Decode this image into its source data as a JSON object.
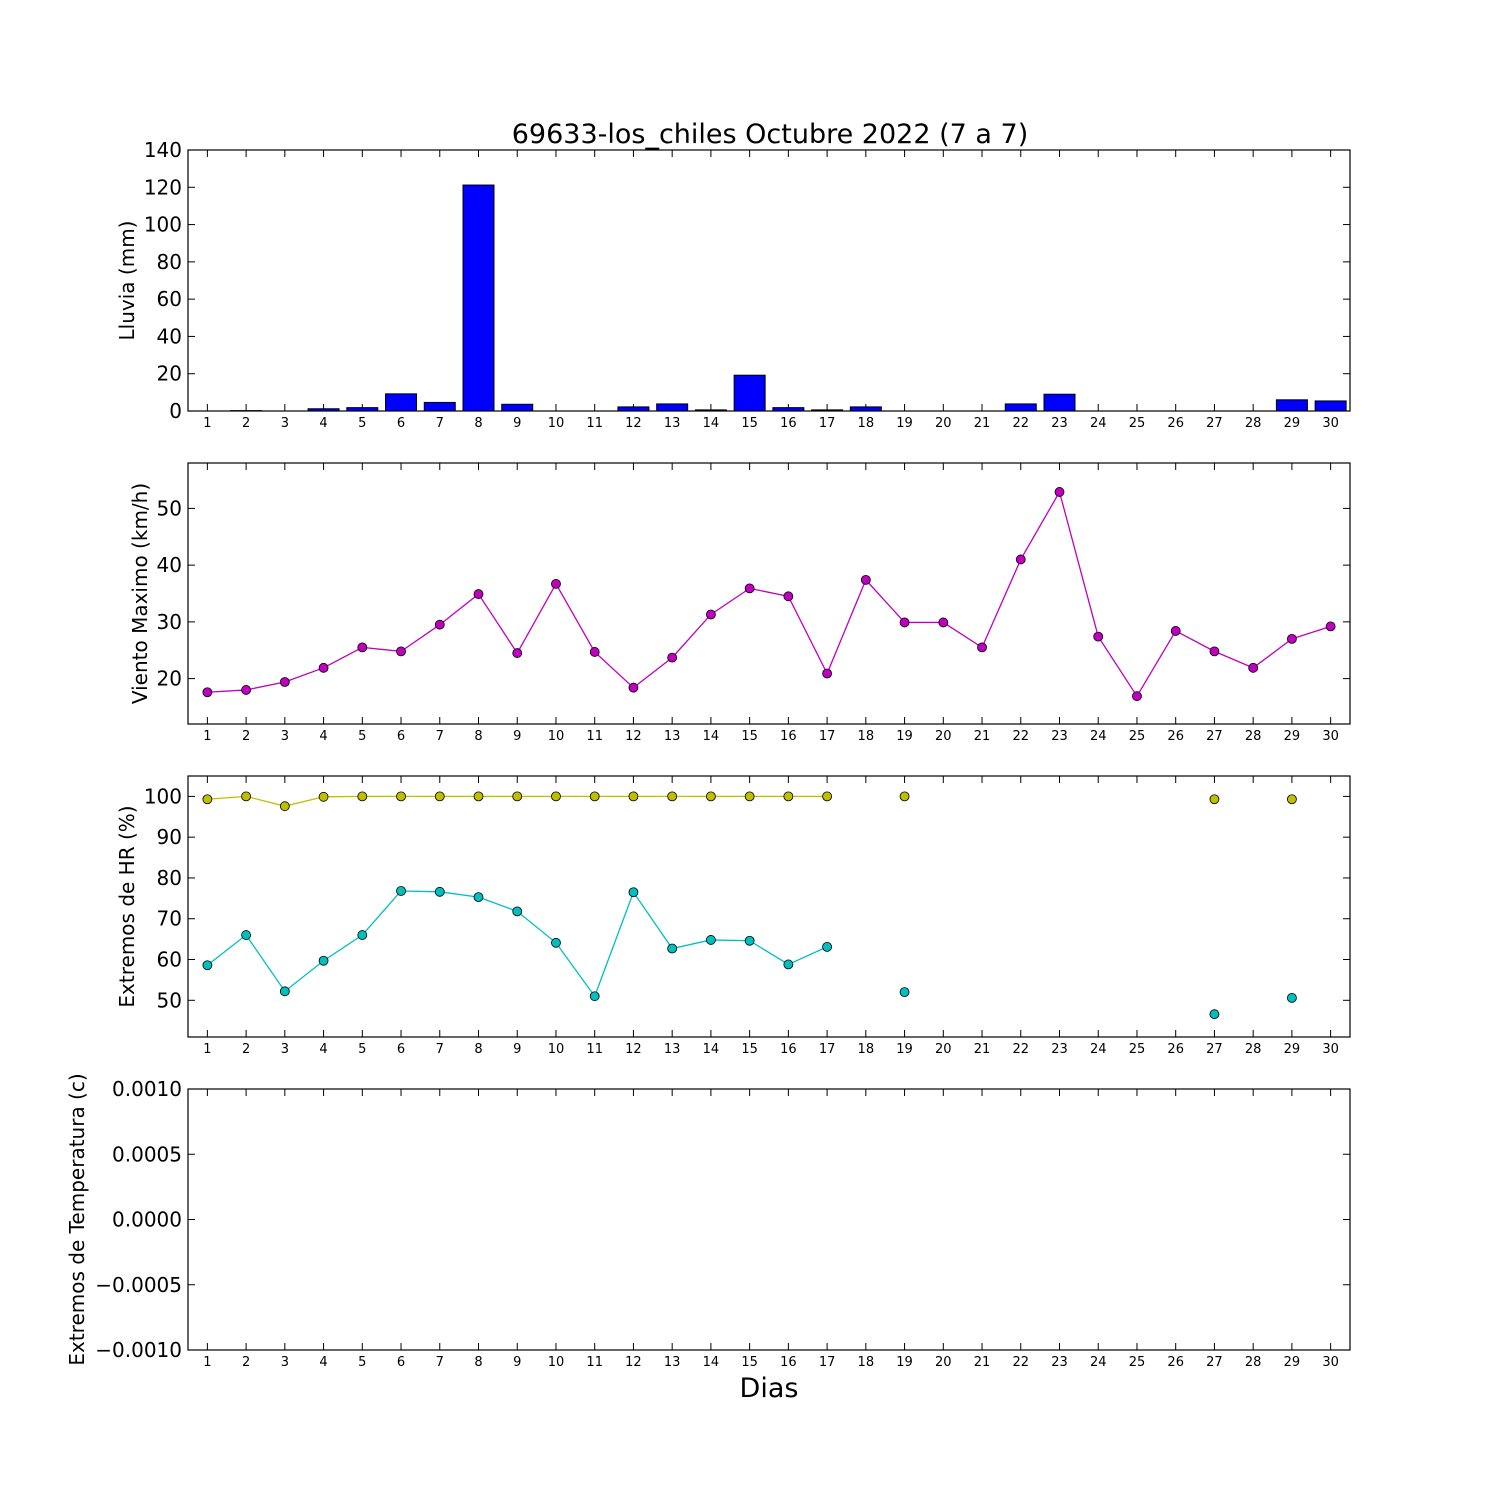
{
  "title": "69633-los_chiles Octubre 2022  (7 a 7)",
  "xlabel": "Dias",
  "chart_data": [
    {
      "type": "bar",
      "ylabel": "Lluvia (mm)",
      "ylim": [
        0,
        140
      ],
      "yticks": [
        "0",
        "20",
        "40",
        "60",
        "80",
        "100",
        "120",
        "140"
      ],
      "xticks": [
        1,
        2,
        3,
        4,
        5,
        6,
        7,
        8,
        9,
        10,
        11,
        12,
        13,
        14,
        15,
        16,
        17,
        18,
        19,
        20,
        21,
        22,
        23,
        24,
        25,
        26,
        27,
        28,
        29,
        30
      ],
      "x": [
        1,
        2,
        3,
        4,
        5,
        6,
        7,
        8,
        9,
        10,
        11,
        12,
        13,
        14,
        15,
        16,
        17,
        18,
        19,
        20,
        21,
        22,
        23,
        24,
        25,
        26,
        27,
        28,
        29,
        30
      ],
      "values": [
        0,
        0.2,
        0,
        1.2,
        1.8,
        9.2,
        4.6,
        121.2,
        3.6,
        0,
        0,
        2.2,
        3.8,
        0.6,
        19.2,
        1.8,
        0.6,
        2.2,
        0,
        0,
        0,
        3.8,
        9.0,
        0,
        0,
        0,
        0,
        0,
        6.0,
        5.4
      ],
      "color": "#0000ff"
    },
    {
      "type": "line",
      "ylabel": "Viento Maximo (km/h)",
      "ylim": [
        12,
        58
      ],
      "yticks": [
        "20",
        "30",
        "40",
        "50"
      ],
      "xticks": [
        1,
        2,
        3,
        4,
        5,
        6,
        7,
        8,
        9,
        10,
        11,
        12,
        13,
        14,
        15,
        16,
        17,
        18,
        19,
        20,
        21,
        22,
        23,
        24,
        25,
        26,
        27,
        28,
        29,
        30
      ],
      "series": [
        {
          "color": "#bf00bf",
          "x": [
            1,
            2,
            3,
            4,
            5,
            6,
            7,
            8,
            9,
            10,
            11,
            12,
            13,
            14,
            15,
            16,
            17,
            18,
            19,
            20,
            21,
            22,
            23,
            24,
            25,
            26,
            27,
            28,
            29,
            30
          ],
          "values": [
            17.6,
            18.0,
            19.4,
            21.9,
            25.5,
            24.8,
            29.5,
            34.9,
            24.5,
            36.7,
            24.7,
            18.4,
            23.7,
            31.3,
            35.9,
            34.5,
            20.9,
            37.4,
            29.9,
            29.9,
            25.5,
            41.0,
            52.9,
            27.4,
            16.9,
            28.4,
            24.8,
            21.9,
            27.0,
            29.2
          ]
        }
      ]
    },
    {
      "type": "line",
      "ylabel": "Extremos de HR (%)",
      "ylim": [
        41,
        105
      ],
      "yticks": [
        "50",
        "60",
        "70",
        "80",
        "90",
        "100"
      ],
      "xticks": [
        1,
        2,
        3,
        4,
        5,
        6,
        7,
        8,
        9,
        10,
        11,
        12,
        13,
        14,
        15,
        16,
        17,
        18,
        19,
        20,
        21,
        22,
        23,
        24,
        25,
        26,
        27,
        28,
        29,
        30
      ],
      "series": [
        {
          "color": "#bfbf00",
          "x": [
            1,
            2,
            3,
            4,
            5,
            6,
            7,
            8,
            9,
            10,
            11,
            12,
            13,
            14,
            15,
            16,
            17,
            19,
            27,
            29
          ],
          "values": [
            99.3,
            100,
            97.6,
            99.9,
            100,
            100,
            100,
            100,
            100,
            100,
            100,
            100,
            100,
            100,
            100,
            100,
            100,
            100,
            99.3,
            99.3
          ]
        },
        {
          "color": "#00bfbf",
          "x": [
            1,
            2,
            3,
            4,
            5,
            6,
            7,
            8,
            9,
            10,
            11,
            12,
            13,
            14,
            15,
            16,
            17,
            19,
            27,
            29
          ],
          "values": [
            58.6,
            66.0,
            52.2,
            59.7,
            66.0,
            76.8,
            76.6,
            75.3,
            71.8,
            64.1,
            51.0,
            76.5,
            62.7,
            64.8,
            64.6,
            58.8,
            63.1,
            52.0,
            46.6,
            50.6
          ]
        }
      ]
    },
    {
      "type": "line",
      "ylabel": "Extremos de Temperatura (c)",
      "ylim": [
        -0.001,
        0.001
      ],
      "yticks": [
        "0.0010",
        "0.0005",
        "0.0000",
        "−0.0005",
        "−0.0010"
      ],
      "xticks": [
        1,
        2,
        3,
        4,
        5,
        6,
        7,
        8,
        9,
        10,
        11,
        12,
        13,
        14,
        15,
        16,
        17,
        18,
        19,
        20,
        21,
        22,
        23,
        24,
        25,
        26,
        27,
        28,
        29,
        30
      ],
      "series": []
    }
  ]
}
